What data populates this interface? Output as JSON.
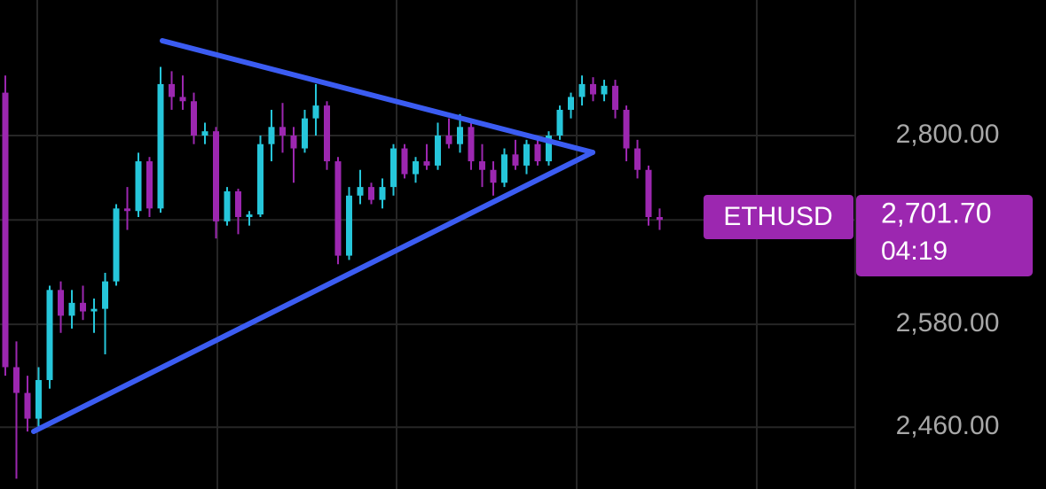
{
  "chart_data": {
    "type": "candlestick",
    "symbol": "ETHUSD",
    "last_price": {
      "value": 2701.7,
      "label": "2,701.70"
    },
    "countdown": "04:19",
    "up_color": "#26c6da",
    "down_color": "#9c27b0",
    "ylim": [
      2388,
      2958
    ],
    "yticks": [
      {
        "value": 2800,
        "label": "2,800.00"
      },
      {
        "value": 2580,
        "label": "2,580.00"
      },
      {
        "value": 2460,
        "label": "2,460.00"
      }
    ],
    "grid": true,
    "open": [
      2850,
      2530,
      2500,
      2470,
      2515,
      2620,
      2590,
      2605,
      2595,
      2598,
      2630,
      2715,
      2712,
      2770,
      2715,
      2860,
      2845,
      2840,
      2800,
      2805,
      2700,
      2735,
      2705,
      2708,
      2790,
      2810,
      2800,
      2785,
      2820,
      2835,
      2770,
      2660,
      2730,
      2740,
      2725,
      2740,
      2785,
      2755,
      2770,
      2765,
      2800,
      2790,
      2810,
      2770,
      2760,
      2745,
      2778,
      2765,
      2790,
      2770,
      2800,
      2830,
      2845,
      2860,
      2848,
      2858,
      2830,
      2785,
      2760,
      2705
    ],
    "high": [
      2870,
      2560,
      2520,
      2530,
      2625,
      2630,
      2620,
      2625,
      2610,
      2640,
      2720,
      2740,
      2780,
      2775,
      2880,
      2875,
      2870,
      2850,
      2815,
      2810,
      2740,
      2738,
      2712,
      2800,
      2830,
      2838,
      2810,
      2830,
      2860,
      2840,
      2775,
      2740,
      2760,
      2745,
      2750,
      2790,
      2790,
      2775,
      2790,
      2815,
      2820,
      2825,
      2815,
      2790,
      2770,
      2785,
      2795,
      2795,
      2800,
      2805,
      2835,
      2850,
      2870,
      2868,
      2865,
      2865,
      2835,
      2795,
      2765,
      2715
    ],
    "low": [
      2520,
      2400,
      2455,
      2455,
      2505,
      2570,
      2575,
      2585,
      2570,
      2545,
      2625,
      2690,
      2705,
      2705,
      2710,
      2830,
      2830,
      2790,
      2790,
      2680,
      2695,
      2685,
      2695,
      2705,
      2770,
      2780,
      2745,
      2780,
      2800,
      2760,
      2650,
      2655,
      2720,
      2720,
      2715,
      2730,
      2750,
      2745,
      2760,
      2760,
      2785,
      2780,
      2760,
      2740,
      2730,
      2740,
      2760,
      2755,
      2765,
      2765,
      2795,
      2820,
      2835,
      2840,
      2840,
      2820,
      2770,
      2750,
      2695,
      2690
    ],
    "close": [
      2530,
      2500,
      2470,
      2515,
      2620,
      2590,
      2605,
      2595,
      2598,
      2630,
      2715,
      2712,
      2770,
      2715,
      2860,
      2845,
      2840,
      2800,
      2805,
      2700,
      2735,
      2705,
      2708,
      2790,
      2810,
      2800,
      2785,
      2820,
      2835,
      2770,
      2660,
      2730,
      2740,
      2725,
      2740,
      2785,
      2755,
      2770,
      2765,
      2800,
      2790,
      2810,
      2770,
      2760,
      2745,
      2778,
      2765,
      2790,
      2770,
      2800,
      2830,
      2845,
      2860,
      2848,
      2858,
      2830,
      2785,
      2760,
      2705,
      2701.7
    ]
  }
}
